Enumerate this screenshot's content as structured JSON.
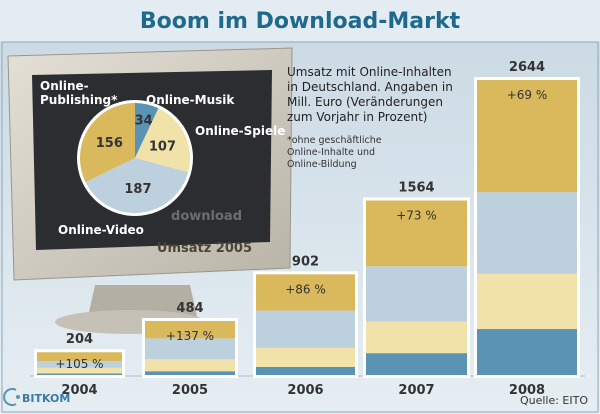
{
  "title": "Boom im Download-Markt",
  "description_lines": [
    "Umsatz mit Online-Inhalten",
    "in Deutschland. Angaben in",
    "Mill. Euro (Veränderungen",
    "zum Vorjahr in Prozent)"
  ],
  "footnote_lines": [
    "*ohne geschäftliche",
    "Online-Inhalte und",
    "Online-Bildung"
  ],
  "source": "Quelle: EITO",
  "logo": "BITKOM",
  "colors": {
    "publishing": "#d9b95c",
    "video": "#bdd0de",
    "games": "#f1e2aa",
    "music": "#5b93b5",
    "title": "#1f6a8c",
    "background": "#d3dfe8"
  },
  "chart_data": [
    {
      "type": "pie",
      "title": "Umsatz 2005",
      "screen_watermark": "download",
      "slices": [
        {
          "label": "Online-Musik",
          "value": 34
        },
        {
          "label": "Online-Spiele",
          "value": 107
        },
        {
          "label": "Online-Video",
          "value": 187
        },
        {
          "label": "Online-Publishing*",
          "value": 156
        }
      ]
    },
    {
      "type": "bar",
      "stacked": true,
      "categories": [
        "2004",
        "2005",
        "2006",
        "2007",
        "2008"
      ],
      "totals": [
        204,
        484,
        902,
        1564,
        2644
      ],
      "change_labels": [
        "+105 %",
        "+137 %",
        "+86 %",
        "+73 %",
        "+69 %"
      ],
      "series": [
        {
          "key": "music",
          "values": [
            14,
            34,
            72,
            196,
            412
          ]
        },
        {
          "key": "games",
          "values": [
            50,
            107,
            171,
            282,
            494
          ]
        },
        {
          "key": "video",
          "values": [
            60,
            187,
            334,
            496,
            732
          ]
        },
        {
          "key": "publishing",
          "values": [
            80,
            156,
            325,
            590,
            1006
          ]
        }
      ]
    }
  ]
}
